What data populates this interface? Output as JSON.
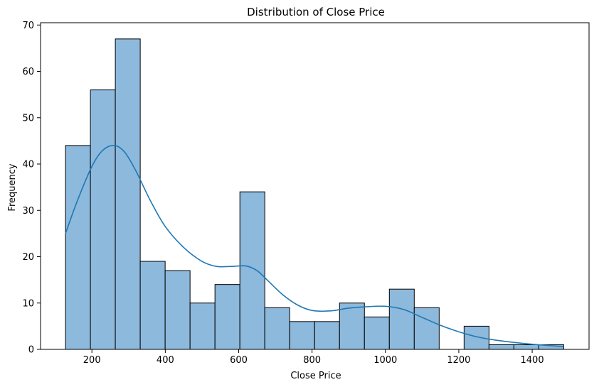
{
  "chart_data": {
    "type": "bar",
    "title": "Distribution of Close Price",
    "xlabel": "Close Price",
    "ylabel": "Frequency",
    "xlim": [
      60,
      1555
    ],
    "ylim": [
      0,
      70.5
    ],
    "x_ticks": [
      200,
      400,
      600,
      800,
      1000,
      1200,
      1400
    ],
    "y_ticks": [
      0,
      10,
      20,
      30,
      40,
      50,
      60,
      70
    ],
    "bin_edges": [
      128,
      195.9,
      263.8,
      331.7,
      399.6,
      467.5,
      535.4,
      603.3,
      671.2,
      739.1,
      807,
      874.9,
      942.8,
      1010.7,
      1078.6,
      1146.5,
      1214.4,
      1282.3,
      1350.2,
      1418.1,
      1486
    ],
    "values": [
      44,
      56,
      67,
      19,
      17,
      10,
      14,
      34,
      9,
      6,
      6,
      10,
      7,
      13,
      9,
      0,
      5,
      1,
      1,
      1
    ],
    "kde": {
      "x": [
        128,
        160,
        200,
        230,
        262,
        290,
        320,
        360,
        400,
        450,
        500,
        540,
        580,
        620,
        650,
        680,
        720,
        760,
        800,
        850,
        900,
        950,
        1000,
        1050,
        1100,
        1150,
        1200,
        1250,
        1300,
        1350,
        1400,
        1450,
        1486
      ],
      "y": [
        25,
        32,
        39.5,
        43,
        44,
        42.5,
        38.5,
        32,
        26.5,
        22,
        19,
        17.9,
        17.9,
        18,
        17,
        14.8,
        11.8,
        9.6,
        8.4,
        8.3,
        8.9,
        9.2,
        9.3,
        8.6,
        6.9,
        5.2,
        3.8,
        2.7,
        2.0,
        1.5,
        1.1,
        0.8,
        0.6
      ]
    },
    "colors": {
      "bar_fill": "#8db9dc",
      "bar_edge": "#000000",
      "kde_line": "#1f77b4"
    },
    "grid": false,
    "legend": "none"
  }
}
